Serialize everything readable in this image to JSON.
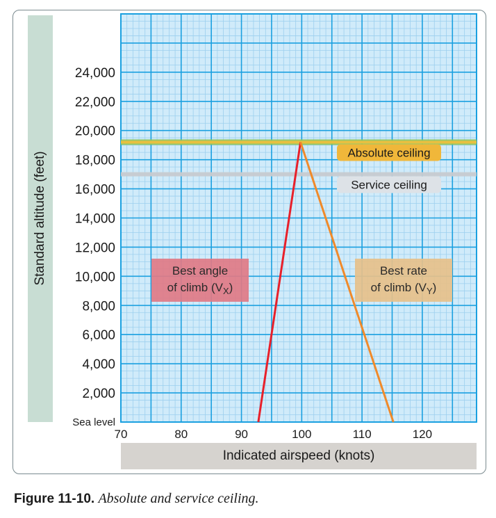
{
  "chart_data": {
    "type": "line",
    "title": "",
    "xlabel": "Indicated airspeed (knots)",
    "ylabel": "Standard altitude (feet)",
    "xlim": [
      70,
      129
    ],
    "ylim": [
      0,
      28000
    ],
    "x_ticks": [
      70,
      80,
      90,
      100,
      110,
      120
    ],
    "y_ticks": [
      2000,
      4000,
      6000,
      8000,
      10000,
      12000,
      14000,
      16000,
      18000,
      20000,
      22000,
      24000
    ],
    "y_tick_labels": [
      "2,000",
      "4,000",
      "6,000",
      "8,000",
      "10,000",
      "12,000",
      "14,000",
      "16,000",
      "18,000",
      "20,000",
      "22,000",
      "24,000"
    ],
    "y_zero_label": "Sea level",
    "grid": true,
    "series": [
      {
        "name": "Best angle of climb (VX)",
        "color": "#e8202a",
        "x": [
          92.8,
          99.8
        ],
        "y": [
          0,
          19200
        ]
      },
      {
        "name": "Best rate of climb (VY)",
        "color": "#f08a2a",
        "x": [
          115.2,
          99.8
        ],
        "y": [
          0,
          19200
        ]
      }
    ],
    "reference_lines": [
      {
        "label": "Absolute ceiling",
        "y": 19200,
        "color": "#e8c040"
      },
      {
        "label": "Service ceiling",
        "y": 17000,
        "color": "#c7cbd0"
      }
    ],
    "annotations": [
      {
        "line1": "Best angle",
        "line2_prefix": "of climb (V",
        "subscript": "X",
        "line2_suffix": ")",
        "color": "#e07a86"
      },
      {
        "line1": "Best rate",
        "line2_prefix": "of climb (V",
        "subscript": "Y",
        "line2_suffix": ")",
        "color": "#e6c08a"
      }
    ]
  },
  "caption": {
    "figure": "Figure 11-10.",
    "text": "Absolute and service ceiling."
  }
}
